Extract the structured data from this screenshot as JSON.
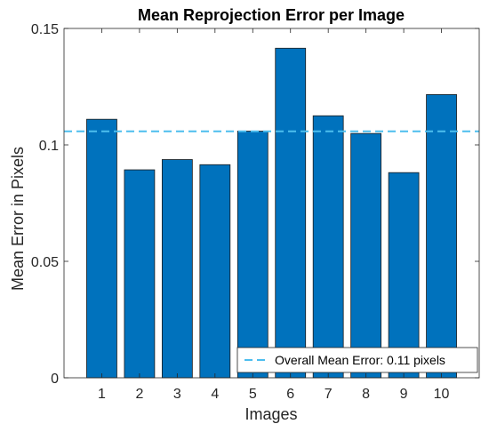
{
  "chart_data": {
    "type": "bar",
    "title": "Mean Reprojection Error per Image",
    "xlabel": "Images",
    "ylabel": "Mean Error in Pixels",
    "categories": [
      "1",
      "2",
      "3",
      "4",
      "5",
      "6",
      "7",
      "8",
      "9",
      "10"
    ],
    "values": [
      0.111,
      0.0893,
      0.0937,
      0.0915,
      0.1059,
      0.1415,
      0.1125,
      0.1049,
      0.0881,
      0.1216
    ],
    "ylim": [
      0,
      0.15
    ],
    "yticks": [
      0,
      0.05,
      0.1,
      0.15
    ],
    "ytick_labels": [
      "0",
      "0.05",
      "0.1",
      "0.15"
    ],
    "reference_line": {
      "value": 0.1058,
      "style": "dashed",
      "color": "#4DBEEE",
      "legend_label": "Overall Mean Error: 0.11 pixels"
    },
    "bar_color": "#0072BD",
    "grid": false,
    "box": true,
    "legend_position": "bottom-right"
  }
}
